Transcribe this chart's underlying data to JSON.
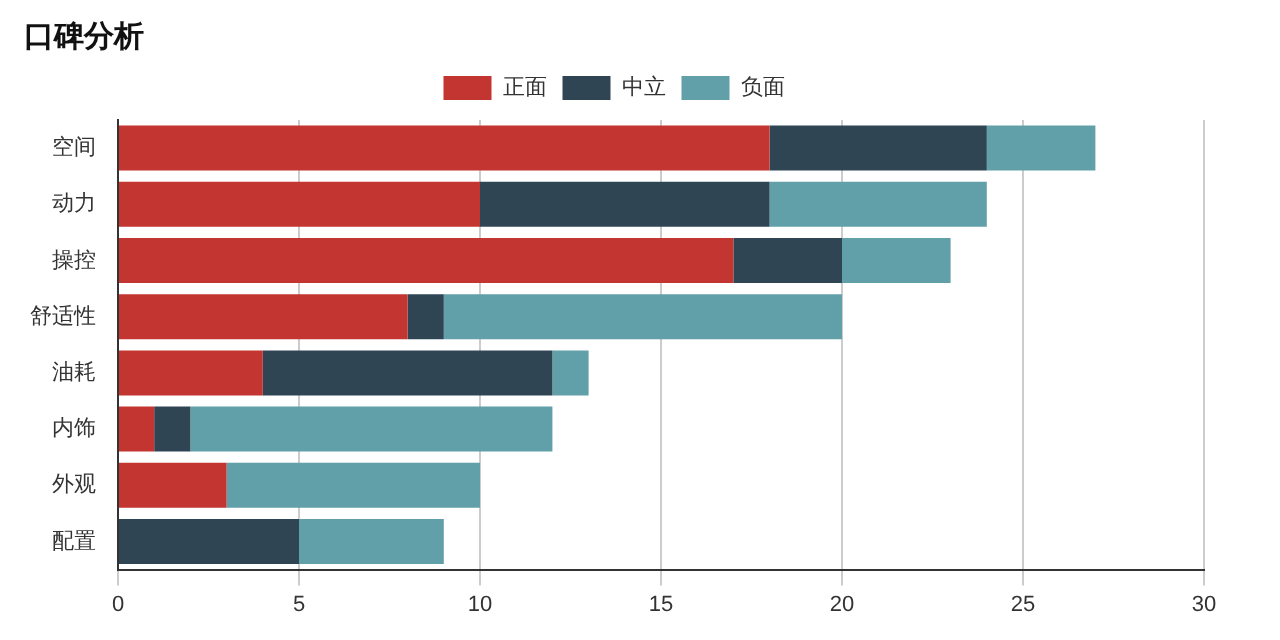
{
  "chart_data": {
    "type": "bar",
    "title": "口碑分析",
    "orientation": "horizontal",
    "stacked": true,
    "categories": [
      "空间",
      "动力",
      "操控",
      "舒适性",
      "油耗",
      "内饰",
      "外观",
      "配置"
    ],
    "series": [
      {
        "name": "正面",
        "color": "#c23531",
        "values": [
          18,
          10,
          17,
          8,
          4,
          1,
          3,
          0
        ]
      },
      {
        "name": "中立",
        "color": "#2f4554",
        "values": [
          6,
          8,
          3,
          1,
          8,
          1,
          0,
          5
        ]
      },
      {
        "name": "负面",
        "color": "#61a0a8",
        "values": [
          3,
          6,
          3,
          11,
          1,
          10,
          7,
          4
        ]
      }
    ],
    "xlim": [
      0,
      30
    ],
    "xticks": [
      0,
      5,
      10,
      15,
      20,
      25,
      30
    ],
    "grid": "x",
    "legend": "top"
  }
}
